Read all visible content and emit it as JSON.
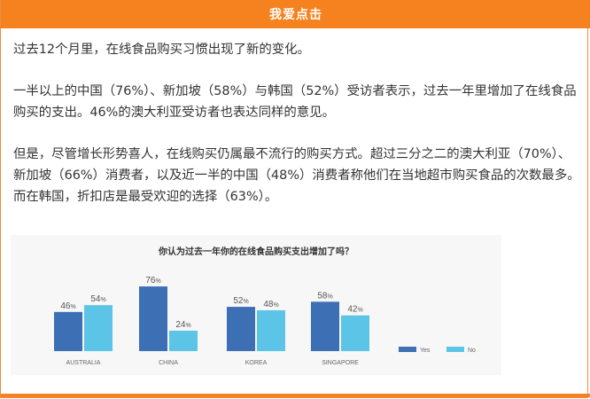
{
  "header": {
    "title": "我爱点击"
  },
  "article": {
    "paragraphs": [
      "过去12个月里，在线食品购买习惯出现了新的变化。",
      "一半以上的中国（76%）、新加坡（58%）与韩国（52%）受访者表示，过去一年里增加了在线食品购买的支出。46%的澳大利亚受访者也表达同样的意见。",
      "但是，尽管增长形势喜人，在线购买仍属最不流行的购买方式。超过三分之二的澳大利亚（70%）、新加坡（66%）消费者，以及近一半的中国（48%）消费者称他们在当地超市购买食品的次数最多。而在韩国，折扣店是最受欢迎的选择（63%）。"
    ]
  },
  "colors": {
    "header": "#f5821f",
    "yes": "#3d6fb5",
    "no": "#5cc4e6"
  },
  "chart_data": {
    "type": "bar",
    "title": "你认为过去一年你的在线食品购买支出增加了吗？",
    "categories": [
      "AUSTRALIA",
      "CHINA",
      "KOREA",
      "SINGAPORE"
    ],
    "series": [
      {
        "name": "Yes",
        "values": [
          46,
          76,
          52,
          58
        ]
      },
      {
        "name": "No",
        "values": [
          54,
          24,
          48,
          42
        ]
      }
    ],
    "unit": "%",
    "ylim": [
      0,
      100
    ],
    "grid": false,
    "legend": "right"
  }
}
